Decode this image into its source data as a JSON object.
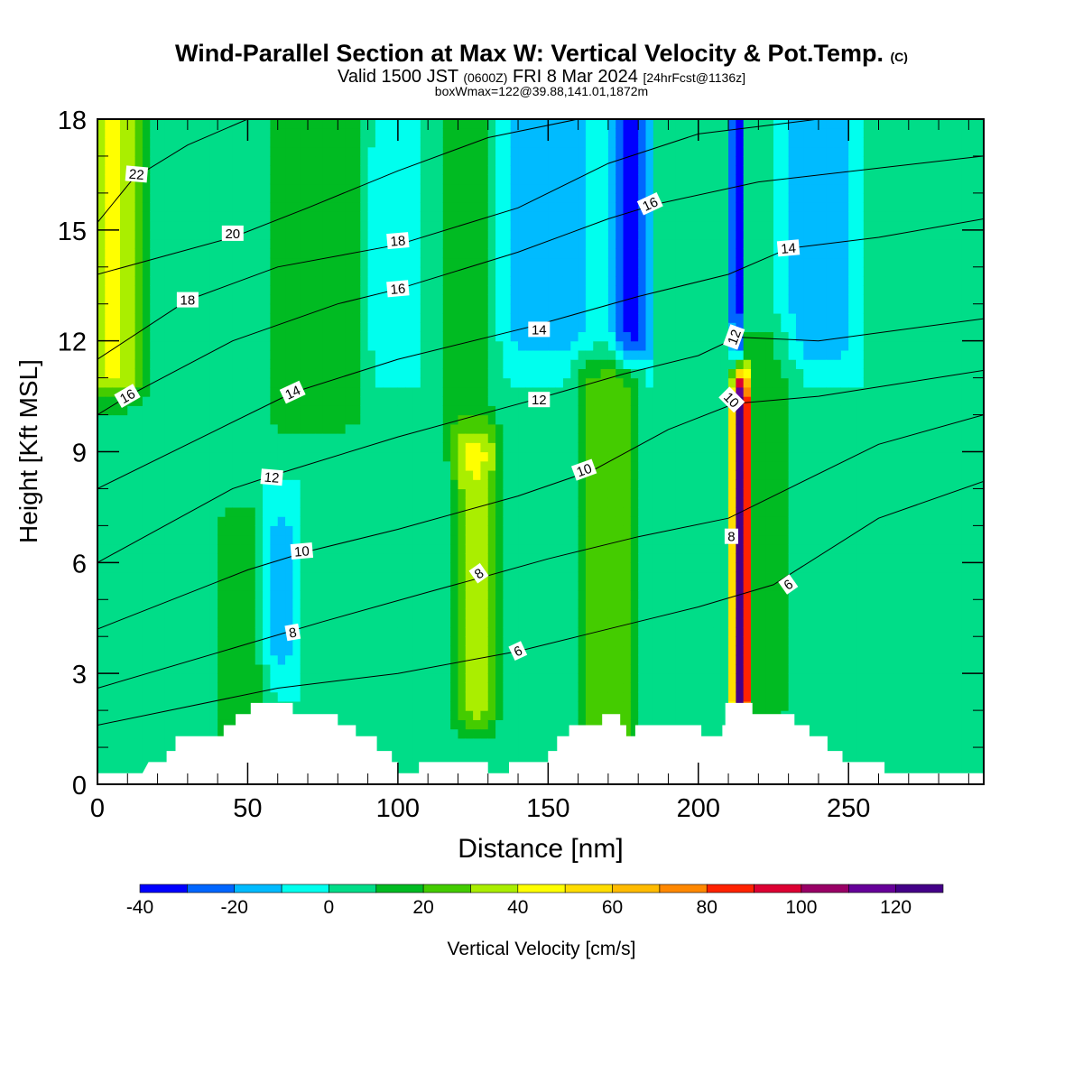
{
  "title": {
    "main": "Wind-Parallel Section at Max W: Vertical Velocity & Pot.Temp.",
    "copyright": "(C)",
    "valid_prefix": "Valid 1500 JST",
    "valid_utc": "(0600Z)",
    "valid_date": "FRI 8 Mar 2024",
    "forecast_info": "[24hrFcst@1136z]",
    "boxwmax": "boxWmax=122@39.88,141.01,1872m"
  },
  "colorbar": {
    "label": "Vertical Velocity [cm/s]",
    "ticks": [
      "-40",
      "-20",
      "0",
      "20",
      "40",
      "60",
      "80",
      "100",
      "120"
    ],
    "levels": [
      -40,
      -30,
      -20,
      -10,
      0,
      10,
      20,
      30,
      40,
      50,
      60,
      70,
      80,
      90,
      100,
      110,
      120,
      130
    ],
    "colors": [
      "#0000ff",
      "#0066ff",
      "#00bbff",
      "#00ffee",
      "#00dd88",
      "#00bb22",
      "#44cc00",
      "#aaee00",
      "#ffff00",
      "#ffdd00",
      "#ffbb00",
      "#ff8800",
      "#ff2200",
      "#dd0033",
      "#990066",
      "#660099",
      "#440088"
    ]
  },
  "chart_data": {
    "type": "heatmap",
    "xlabel": "Distance [nm]",
    "ylabel": "Height [Kft MSL]",
    "xlim": [
      0,
      295
    ],
    "ylim": [
      0,
      18
    ],
    "xticks": [
      "0",
      "50",
      "100",
      "150",
      "200",
      "250"
    ],
    "yticks": [
      "0",
      "3",
      "6",
      "9",
      "12",
      "15",
      "18"
    ],
    "xtick_values": [
      0,
      50,
      100,
      150,
      200,
      250
    ],
    "ytick_values": [
      0,
      3,
      6,
      9,
      12,
      15,
      18
    ],
    "field": "Vertical Velocity [cm/s]",
    "background_w": 0,
    "w_features": [
      {
        "x": 5,
        "halfwidth": 14,
        "y0": 11,
        "y1": 18,
        "w": 42
      },
      {
        "x": 48,
        "halfwidth": 12,
        "y0": 0,
        "y1": 7,
        "w": 18
      },
      {
        "x": 72,
        "halfwidth": 22,
        "y0": 10,
        "y1": 18,
        "w": 20
      },
      {
        "x": 126,
        "halfwidth": 10,
        "y0": 2,
        "y1": 9,
        "w": 34
      },
      {
        "x": 123,
        "halfwidth": 14,
        "y0": 9,
        "y1": 18,
        "w": 14
      },
      {
        "x": 170,
        "halfwidth": 14,
        "y0": 1,
        "y1": 11,
        "w": 26
      },
      {
        "x": 214,
        "halfwidth": 3.5,
        "y0": 2.2,
        "y1": 10.5,
        "w": 122
      },
      {
        "x": 222,
        "halfwidth": 14,
        "y0": 2,
        "y1": 12,
        "w": 14
      },
      {
        "x": 178,
        "halfwidth": 8,
        "y0": 12,
        "y1": 18,
        "w": -32
      },
      {
        "x": 213,
        "halfwidth": 3,
        "y0": 12,
        "y1": 18,
        "w": -36
      },
      {
        "x": 240,
        "halfwidth": 16,
        "y0": 12,
        "y1": 18,
        "w": -18
      },
      {
        "x": 150,
        "halfwidth": 22,
        "y0": 12,
        "y1": 18,
        "w": -14
      },
      {
        "x": 60,
        "halfwidth": 8,
        "y0": 3.5,
        "y1": 7,
        "w": -14
      },
      {
        "x": 98,
        "halfwidth": 10,
        "y0": 12,
        "y1": 17,
        "w": -10
      }
    ],
    "terrain": [
      [
        0,
        0.3
      ],
      [
        15,
        0.3
      ],
      [
        17,
        0.6
      ],
      [
        23,
        0.6
      ],
      [
        23,
        0.9
      ],
      [
        26,
        0.9
      ],
      [
        26,
        1.3
      ],
      [
        42,
        1.3
      ],
      [
        42,
        1.6
      ],
      [
        46,
        1.6
      ],
      [
        46,
        1.9
      ],
      [
        51,
        1.9
      ],
      [
        51,
        2.2
      ],
      [
        65,
        2.2
      ],
      [
        65,
        1.9
      ],
      [
        80,
        1.9
      ],
      [
        80,
        1.6
      ],
      [
        86,
        1.6
      ],
      [
        86,
        1.3
      ],
      [
        93,
        1.3
      ],
      [
        93,
        0.9
      ],
      [
        98,
        0.9
      ],
      [
        98,
        0.6
      ],
      [
        100,
        0.6
      ],
      [
        100,
        0.3
      ],
      [
        107,
        0.3
      ],
      [
        107,
        0.6
      ],
      [
        130,
        0.6
      ],
      [
        130,
        0.3
      ],
      [
        137,
        0.3
      ],
      [
        137,
        0.6
      ],
      [
        150,
        0.6
      ],
      [
        150,
        0.9
      ],
      [
        153,
        0.9
      ],
      [
        153,
        1.3
      ],
      [
        157,
        1.3
      ],
      [
        157,
        1.6
      ],
      [
        168,
        1.6
      ],
      [
        168,
        1.9
      ],
      [
        174,
        1.9
      ],
      [
        174,
        1.6
      ],
      [
        176,
        1.6
      ],
      [
        176,
        1.3
      ],
      [
        179,
        1.3
      ],
      [
        179,
        1.6
      ],
      [
        201,
        1.6
      ],
      [
        201,
        1.3
      ],
      [
        208,
        1.3
      ],
      [
        208,
        1.6
      ],
      [
        209,
        1.6
      ],
      [
        209,
        2.2
      ],
      [
        218,
        2.2
      ],
      [
        218,
        1.9
      ],
      [
        232,
        1.9
      ],
      [
        232,
        1.6
      ],
      [
        237,
        1.6
      ],
      [
        237,
        1.3
      ],
      [
        243,
        1.3
      ],
      [
        243,
        0.9
      ],
      [
        248,
        0.9
      ],
      [
        248,
        0.6
      ],
      [
        262,
        0.6
      ],
      [
        262,
        0.3
      ],
      [
        295,
        0.3
      ]
    ],
    "isentropes": [
      {
        "label": "6",
        "points": [
          [
            0,
            1.6
          ],
          [
            60,
            2.6
          ],
          [
            100,
            3.0
          ],
          [
            140,
            3.6
          ],
          [
            160,
            4.0
          ],
          [
            180,
            4.4
          ],
          [
            200,
            4.8
          ],
          [
            225,
            5.4
          ],
          [
            260,
            7.2
          ],
          [
            295,
            8.2
          ]
        ]
      },
      {
        "label": "8",
        "points": [
          [
            0,
            2.6
          ],
          [
            50,
            3.8
          ],
          [
            75,
            4.4
          ],
          [
            110,
            5.2
          ],
          [
            128,
            5.6
          ],
          [
            150,
            6.1
          ],
          [
            180,
            6.7
          ],
          [
            210,
            7.2
          ],
          [
            230,
            8.0
          ],
          [
            260,
            9.2
          ],
          [
            295,
            10.0
          ]
        ]
      },
      {
        "label": "10",
        "points": [
          [
            0,
            4.2
          ],
          [
            50,
            5.8
          ],
          [
            70,
            6.3
          ],
          [
            100,
            6.9
          ],
          [
            140,
            7.8
          ],
          [
            165,
            8.5
          ],
          [
            190,
            9.6
          ],
          [
            212,
            10.3
          ],
          [
            240,
            10.5
          ],
          [
            295,
            11.2
          ]
        ]
      },
      {
        "label": "12",
        "points": [
          [
            0,
            6.0
          ],
          [
            45,
            8.0
          ],
          [
            60,
            8.4
          ],
          [
            100,
            9.4
          ],
          [
            145,
            10.4
          ],
          [
            175,
            11.1
          ],
          [
            200,
            11.6
          ],
          [
            213,
            12.1
          ],
          [
            240,
            12.0
          ],
          [
            295,
            12.6
          ]
        ]
      },
      {
        "label": "14",
        "points": [
          [
            0,
            8.0
          ],
          [
            40,
            9.6
          ],
          [
            65,
            10.6
          ],
          [
            100,
            11.5
          ],
          [
            145,
            12.4
          ],
          [
            180,
            13.2
          ],
          [
            210,
            13.8
          ],
          [
            230,
            14.5
          ],
          [
            260,
            14.8
          ],
          [
            295,
            15.3
          ]
        ]
      },
      {
        "label": "16",
        "points": [
          [
            0,
            10.0
          ],
          [
            10,
            10.5
          ],
          [
            45,
            12.0
          ],
          [
            80,
            13.0
          ],
          [
            100,
            13.4
          ],
          [
            140,
            14.4
          ],
          [
            170,
            15.3
          ],
          [
            186,
            15.7
          ],
          [
            220,
            16.3
          ],
          [
            295,
            17.0
          ]
        ]
      },
      {
        "label": "18",
        "points": [
          [
            0,
            11.5
          ],
          [
            30,
            13.1
          ],
          [
            60,
            14.0
          ],
          [
            100,
            14.6
          ],
          [
            140,
            15.6
          ],
          [
            170,
            16.8
          ],
          [
            200,
            17.6
          ],
          [
            240,
            18.0
          ]
        ]
      },
      {
        "label": "20",
        "points": [
          [
            0,
            13.8
          ],
          [
            45,
            14.8
          ],
          [
            70,
            15.6
          ],
          [
            100,
            16.6
          ],
          [
            130,
            17.5
          ],
          [
            160,
            18.0
          ]
        ]
      },
      {
        "label": "22",
        "points": [
          [
            0,
            15.2
          ],
          [
            12,
            16.4
          ],
          [
            30,
            17.3
          ],
          [
            50,
            18.0
          ]
        ]
      }
    ],
    "contour_labels": [
      {
        "text": "22",
        "x": 13,
        "y": 16.5,
        "angle": 5
      },
      {
        "text": "20",
        "x": 45,
        "y": 14.9,
        "angle": 0
      },
      {
        "text": "18",
        "x": 30,
        "y": 13.1,
        "angle": 0
      },
      {
        "text": "16",
        "x": 10,
        "y": 10.5,
        "angle": -30
      },
      {
        "text": "18",
        "x": 100,
        "y": 14.7,
        "angle": -5
      },
      {
        "text": "16",
        "x": 100,
        "y": 13.4,
        "angle": -5
      },
      {
        "text": "14",
        "x": 65,
        "y": 10.6,
        "angle": -25
      },
      {
        "text": "14",
        "x": 147,
        "y": 12.3,
        "angle": 0
      },
      {
        "text": "12",
        "x": 147,
        "y": 10.4,
        "angle": 0
      },
      {
        "text": "12",
        "x": 58,
        "y": 8.3,
        "angle": 5
      },
      {
        "text": "10",
        "x": 68,
        "y": 6.3,
        "angle": -5
      },
      {
        "text": "10",
        "x": 162,
        "y": 8.5,
        "angle": -20
      },
      {
        "text": "8",
        "x": 65,
        "y": 4.1,
        "angle": -10
      },
      {
        "text": "8",
        "x": 127,
        "y": 5.7,
        "angle": -35
      },
      {
        "text": "6",
        "x": 140,
        "y": 3.6,
        "angle": -25
      },
      {
        "text": "16",
        "x": 184,
        "y": 15.7,
        "angle": -25
      },
      {
        "text": "14",
        "x": 230,
        "y": 14.5,
        "angle": -5
      },
      {
        "text": "12",
        "x": 212,
        "y": 12.1,
        "angle": -70
      },
      {
        "text": "10",
        "x": 211,
        "y": 10.4,
        "angle": 45
      },
      {
        "text": "8",
        "x": 211,
        "y": 6.7,
        "angle": 0
      },
      {
        "text": "6",
        "x": 230,
        "y": 5.4,
        "angle": -35
      }
    ]
  }
}
